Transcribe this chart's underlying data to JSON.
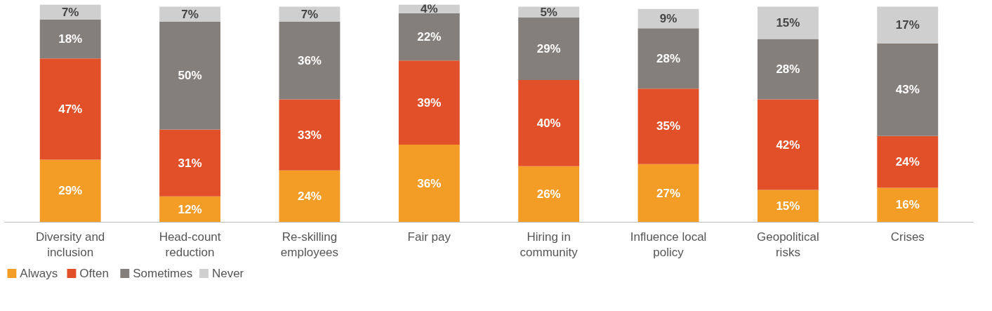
{
  "chart_data": {
    "type": "bar",
    "stacked": true,
    "legend": "bottom left",
    "grid": false,
    "categories": [
      "Diversity and inclusion",
      "Head-count reduction",
      "Re-skilling employees",
      "Fair pay",
      "Hiring in community",
      "Influence local policy",
      "Geopolitical risks",
      "Crises"
    ],
    "series": [
      {
        "name": "Always",
        "color": "#f39c26",
        "values": [
          29,
          12,
          24,
          36,
          26,
          27,
          15,
          16
        ],
        "value_labels": [
          "29%",
          "12%",
          "24%",
          "36%",
          "26%",
          "27%",
          "15%",
          "16%"
        ]
      },
      {
        "name": "Often",
        "color": "#e2502a",
        "values": [
          47,
          31,
          33,
          39,
          40,
          35,
          42,
          24
        ],
        "value_labels": [
          "47%",
          "31%",
          "33%",
          "39%",
          "40%",
          "35%",
          "42%",
          "24%"
        ]
      },
      {
        "name": "Sometimes",
        "color": "#857f7c",
        "values": [
          18,
          50,
          36,
          22,
          29,
          28,
          28,
          43
        ],
        "value_labels": [
          "18%",
          "50%",
          "36%",
          "22%",
          "29%",
          "28%",
          "28%",
          "43%"
        ]
      },
      {
        "name": "Never",
        "color": "#d0cfcf",
        "values": [
          7,
          7,
          7,
          4,
          5,
          9,
          15,
          17
        ],
        "value_labels": [
          "7%",
          "7%",
          "7%",
          "4%",
          "5%",
          "9%",
          "15%",
          "17%"
        ]
      }
    ]
  }
}
